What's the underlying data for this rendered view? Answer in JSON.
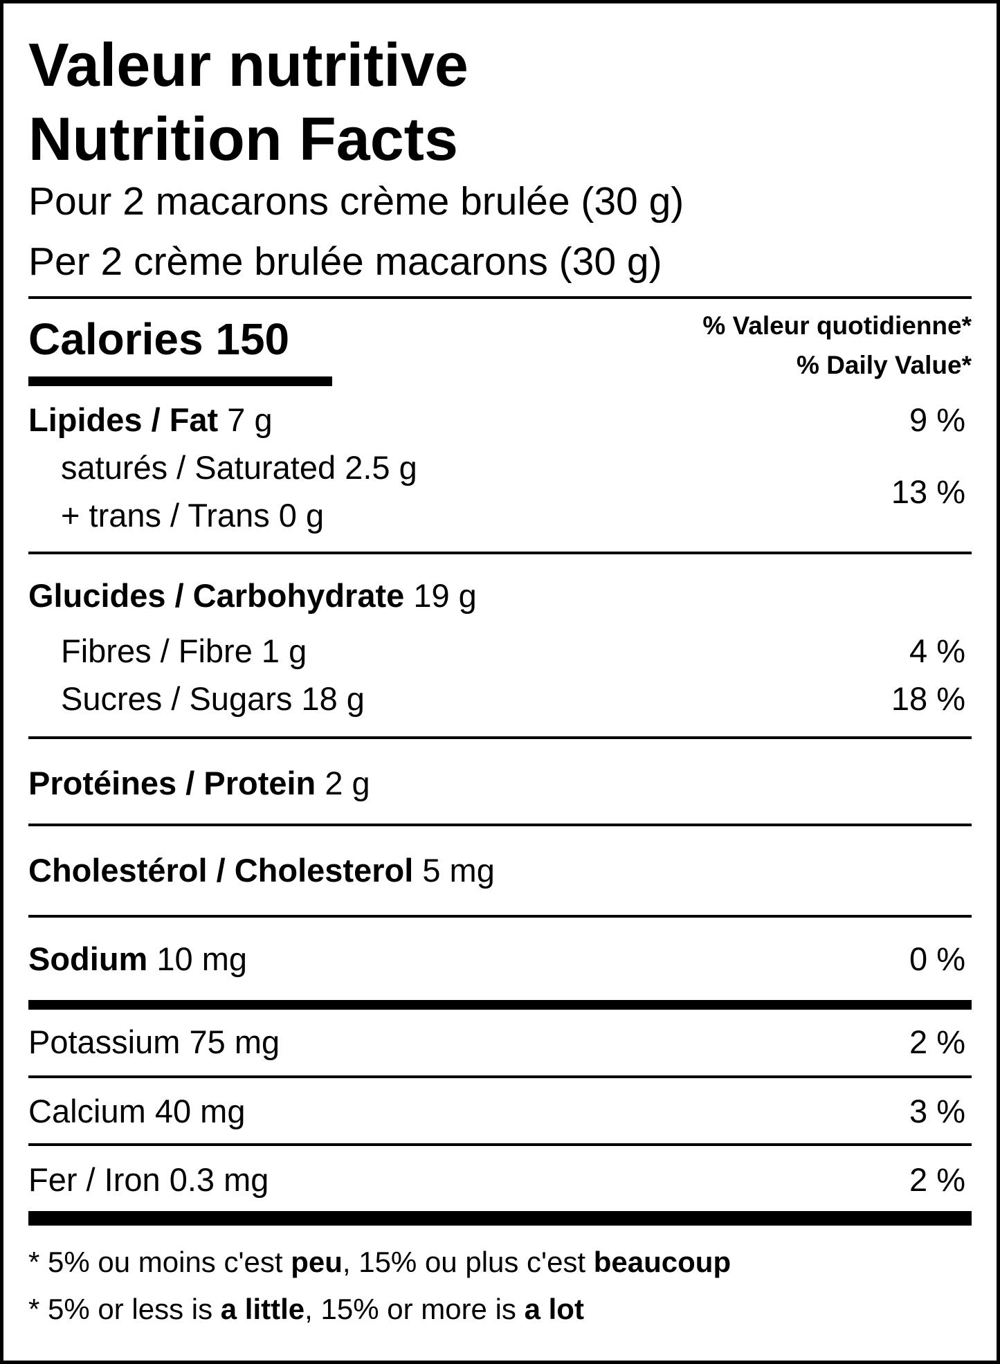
{
  "title_fr": "Valeur nutritive",
  "title_en": "Nutrition Facts",
  "serving_fr": "Pour 2 macarons crème brulée (30 g)",
  "serving_en": "Per 2 crème brulée macarons (30 g)",
  "calories_label": "Calories",
  "calories_value": "150",
  "dv_header_fr": "% Valeur quotidienne*",
  "dv_header_en": "% Daily Value*",
  "nutrients": {
    "fat": {
      "label": "Lipides / Fat",
      "amount": "7 g",
      "dv": "9 %"
    },
    "saturated": {
      "label": "saturés / Saturated",
      "amount": "2.5 g"
    },
    "trans": {
      "label": "+ trans / Trans",
      "amount": "0 g"
    },
    "sat_trans_dv": "13 %",
    "carbohydrate": {
      "label": "Glucides / Carbohydrate",
      "amount": "19 g"
    },
    "fibre": {
      "label": "Fibres / Fibre",
      "amount": "1 g",
      "dv": "4 %"
    },
    "sugars": {
      "label": "Sucres / Sugars",
      "amount": "18 g",
      "dv": "18 %"
    },
    "protein": {
      "label": "Protéines / Protein",
      "amount": "2 g"
    },
    "cholesterol": {
      "label": "Cholestérol / Cholesterol",
      "amount": "5 mg"
    },
    "sodium": {
      "label": "Sodium",
      "amount": "10 mg",
      "dv": "0 %"
    },
    "potassium": {
      "label": "Potassium",
      "amount": "75 mg",
      "dv": "2 %"
    },
    "calcium": {
      "label": "Calcium",
      "amount": "40 mg",
      "dv": "3 %"
    },
    "iron": {
      "label": "Fer / Iron",
      "amount": "0.3 mg",
      "dv": "2 %"
    }
  },
  "footnote_fr": {
    "a": "* 5% ou moins c'est ",
    "b": "peu",
    "c": ", 15% ou plus c'est ",
    "d": "beaucoup"
  },
  "footnote_en": {
    "a": "* 5% or less is ",
    "b": "a little",
    "c": ", 15% or more is ",
    "d": "a lot"
  }
}
